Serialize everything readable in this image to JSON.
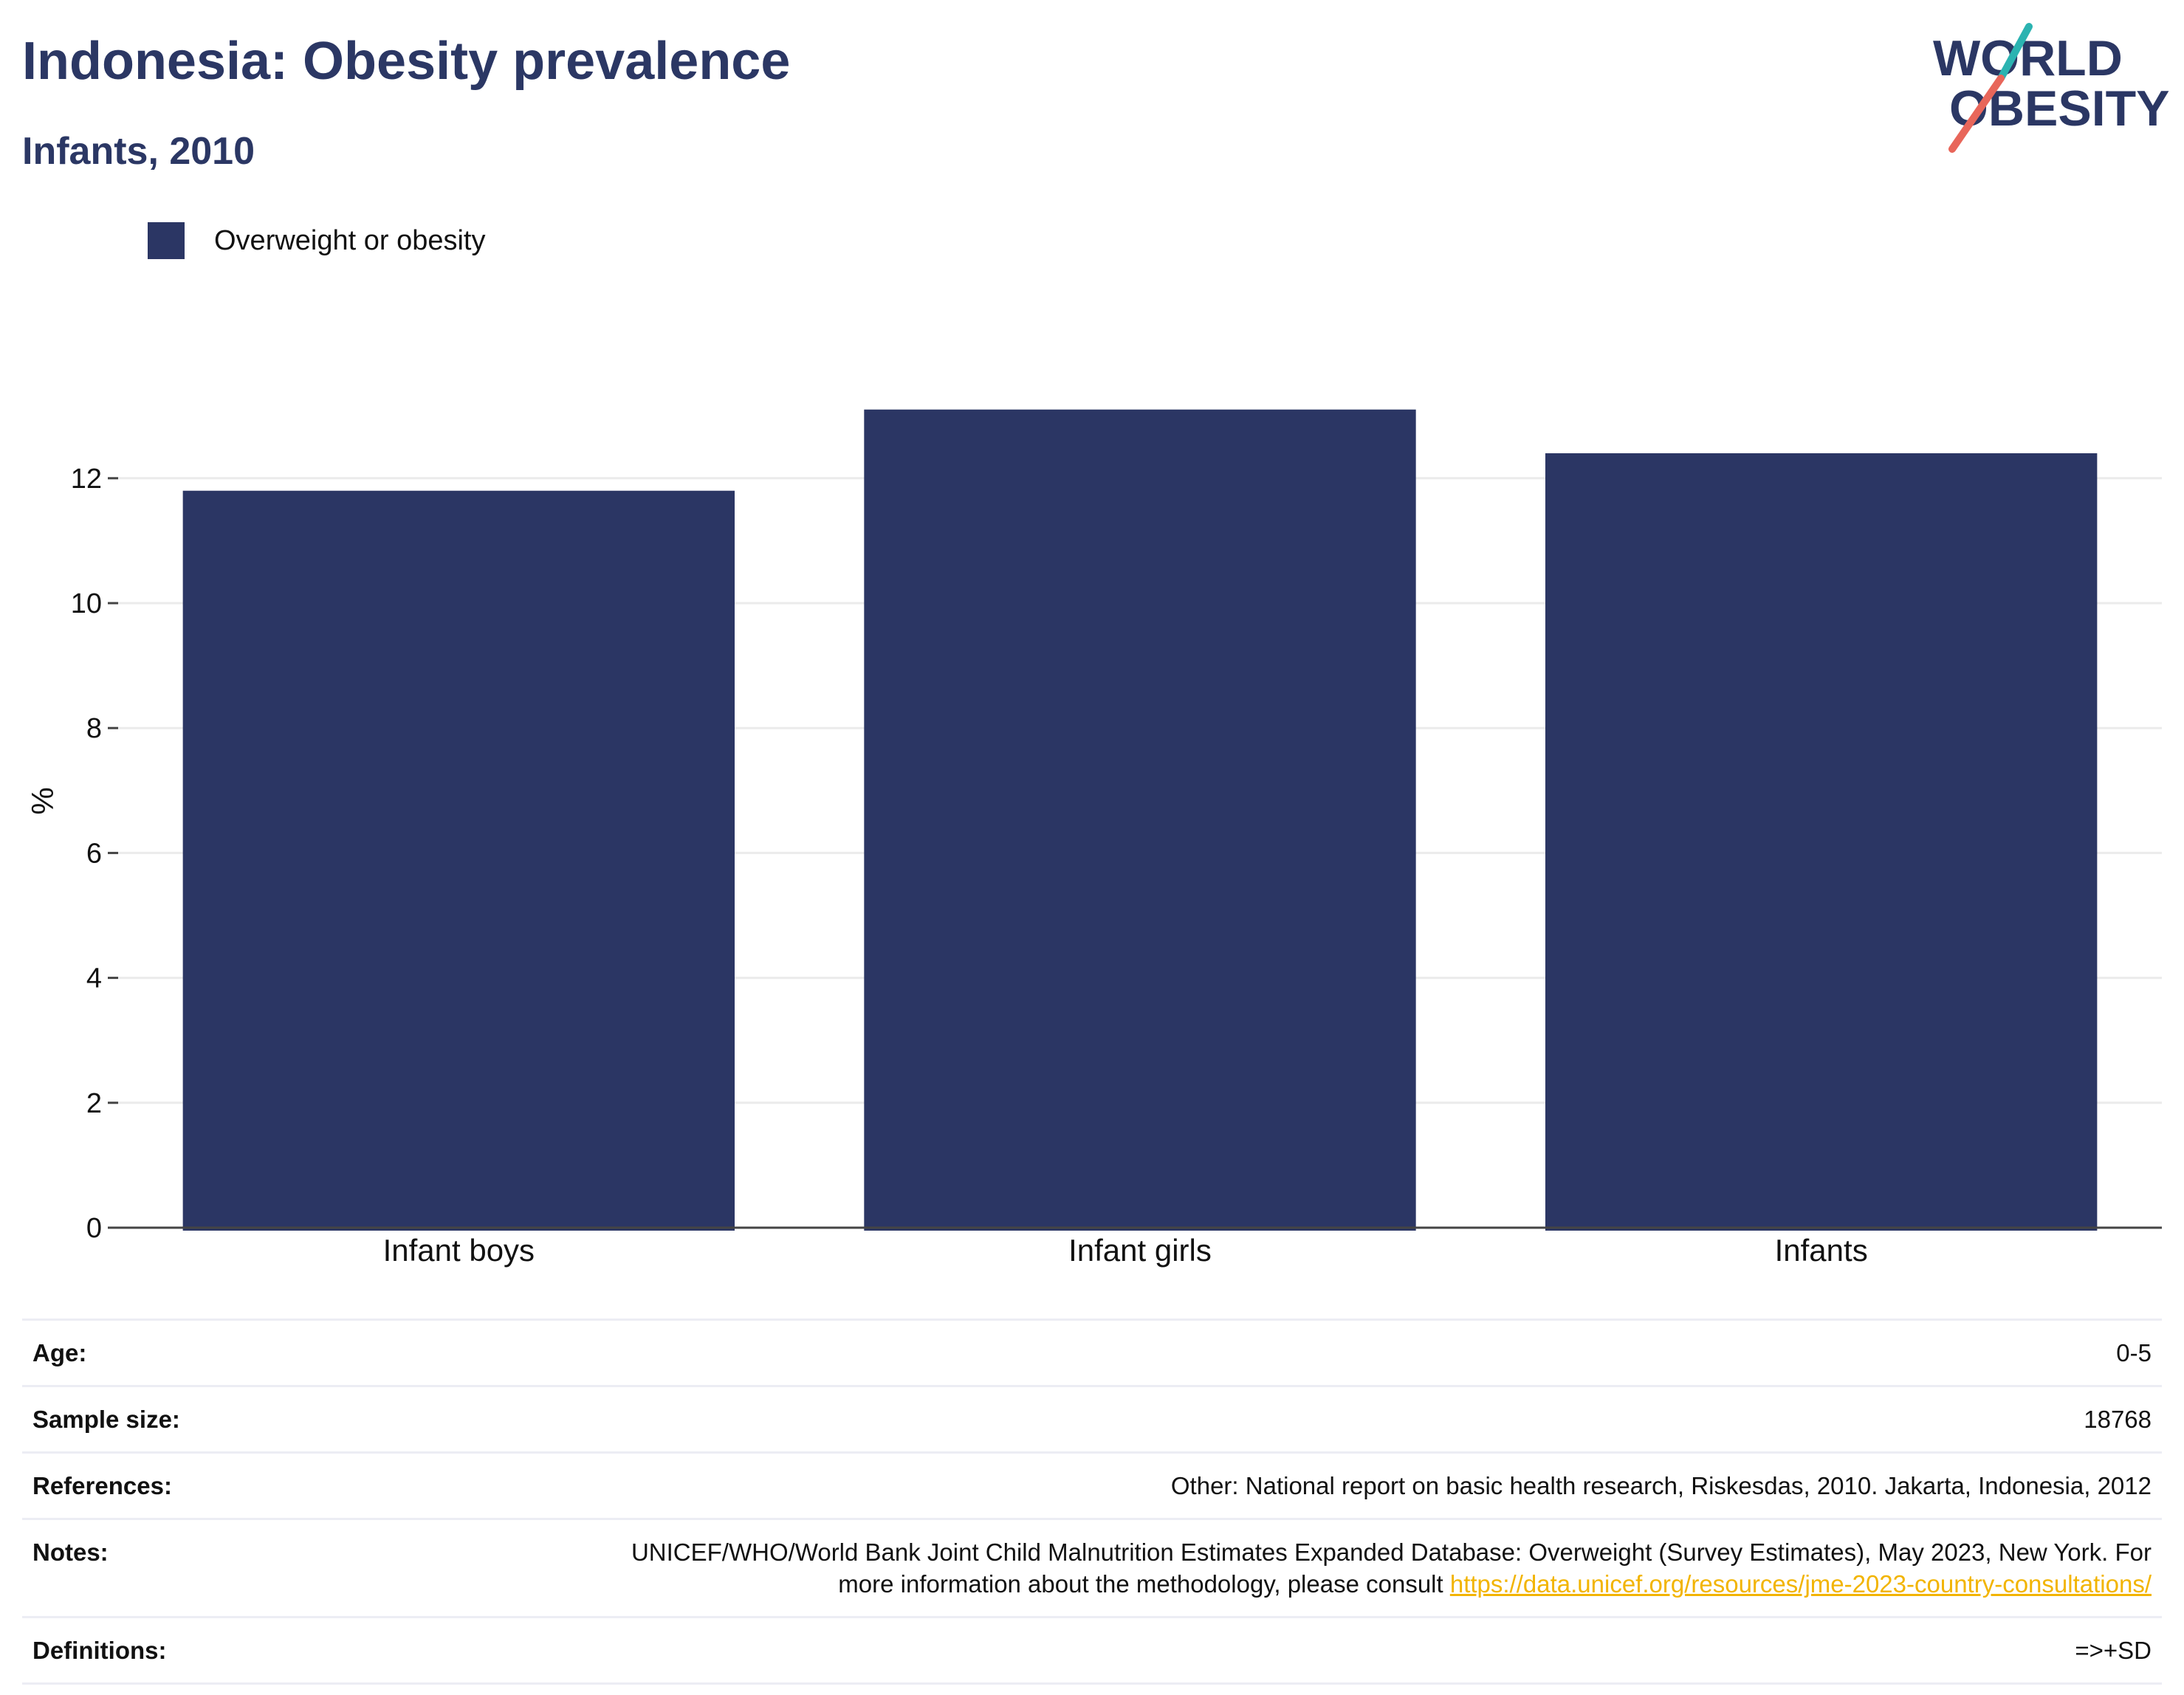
{
  "header": {
    "title": "Indonesia: Obesity prevalence",
    "subtitle": "Infants, 2010"
  },
  "logo": {
    "line1": "WORLD",
    "line2": "OBESITY",
    "text_color": "#2b3764",
    "slash_top_color": "#2bb3b1",
    "slash_bottom_color": "#e8665a"
  },
  "legend": {
    "label": "Overweight or obesity",
    "color": "#2b3664"
  },
  "chart_data": {
    "type": "bar",
    "categories": [
      "Infant boys",
      "Infant girls",
      "Infants"
    ],
    "series": [
      {
        "name": "Overweight or obesity",
        "values": [
          11.8,
          13.1,
          12.4
        ],
        "color": "#2b3664"
      }
    ],
    "ylabel": "%",
    "xlabel": "",
    "ylim": [
      0,
      14.5
    ],
    "yticks": [
      0,
      2,
      4,
      6,
      8,
      10,
      12
    ],
    "grid": true,
    "legend_position": "top-left"
  },
  "info": {
    "age_key": "Age:",
    "age_value": "0-5",
    "sample_key": "Sample size:",
    "sample_value": "18768",
    "references_key": "References:",
    "references_value": "Other: National report on basic health research, Riskesdas, 2010. Jakarta, Indonesia, 2012",
    "notes_key": "Notes:",
    "notes_text": "UNICEF/WHO/World Bank Joint Child Malnutrition Estimates Expanded Database: Overweight (Survey Estimates), May 2023, New York. For more information about the methodology, please consult ",
    "notes_link": "https://data.unicef.org/resources/jme-2023-country-consultations/",
    "definitions_key": "Definitions:",
    "definitions_value": "=>+SD"
  }
}
